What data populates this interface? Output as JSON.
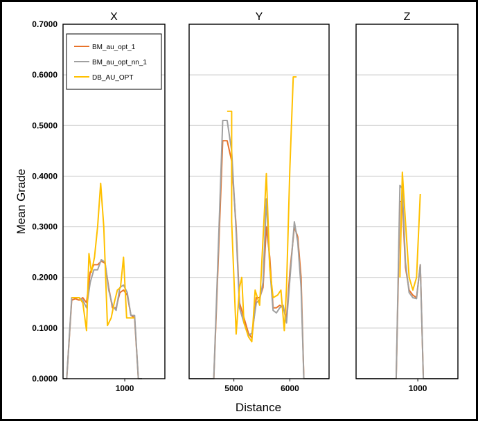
{
  "chart_data": {
    "type": "line",
    "xlabel": "Distance",
    "ylabel": "Mean Grade",
    "ylim": [
      0,
      0.7
    ],
    "yticks": [
      "0.0000",
      "0.1000",
      "0.2000",
      "0.3000",
      "0.4000",
      "0.5000",
      "0.6000",
      "0.7000"
    ],
    "series_meta": [
      {
        "name": "BM_au_opt_1",
        "color": "#e8732a"
      },
      {
        "name": "BM_au_opt_nn_1",
        "color": "#a0a0a0"
      },
      {
        "name": "DB_AU_OPT",
        "color": "#ffc000"
      }
    ],
    "legend_position": "top-left of first panel",
    "panels": [
      {
        "title": "X",
        "xlim": [
          0,
          1650
        ],
        "xticks": [
          1000
        ],
        "xtick_labels": [
          "1000"
        ],
        "series": [
          {
            "name": "BM_au_opt_1",
            "x": [
              0,
              60,
              140,
              200,
              260,
              320,
              380,
              440,
              500,
              560,
              620,
              680,
              740,
              800,
              860,
              920,
              980,
              1040,
              1100,
              1160,
              1220,
              1280
            ],
            "y": [
              0,
              0,
              0.155,
              0.158,
              0.155,
              0.16,
              0.15,
              0.21,
              0.225,
              0.225,
              0.232,
              0.228,
              0.18,
              0.14,
              0.14,
              0.17,
              0.175,
              0.165,
              0.125,
              0.12,
              0,
              0
            ]
          },
          {
            "name": "BM_au_opt_nn_1",
            "x": [
              0,
              60,
              140,
              200,
              260,
              320,
              380,
              440,
              500,
              560,
              620,
              680,
              740,
              800,
              860,
              920,
              980,
              1040,
              1100,
              1160,
              1220,
              1280
            ],
            "y": [
              0,
              0,
              0.16,
              0.16,
              0.16,
              0.155,
              0.14,
              0.19,
              0.215,
              0.215,
              0.235,
              0.23,
              0.175,
              0.145,
              0.135,
              0.18,
              0.185,
              0.17,
              0.125,
              0.125,
              0,
              0
            ]
          },
          {
            "name": "DB_AU_OPT",
            "x": [
              140,
              200,
              260,
              320,
              380,
              420,
              460,
              510,
              560,
              610,
              660,
              720,
              780,
              830,
              880,
              930,
              980,
              1030,
              1080,
              1160
            ],
            "y": [
              0.16,
              0.16,
              0.16,
              0.15,
              0.095,
              0.247,
              0.21,
              0.24,
              0.3,
              0.386,
              0.3,
              0.105,
              0.12,
              0.15,
              0.175,
              0.18,
              0.24,
              0.12,
              0.12,
              0.12
            ]
          }
        ]
      },
      {
        "title": "Y",
        "xlim": [
          4200,
          6700
        ],
        "xticks": [
          5000,
          6000
        ],
        "xtick_labels": [
          "5000",
          "6000"
        ],
        "series": [
          {
            "name": "BM_au_opt_1",
            "x": [
              4200,
              4640,
              4800,
              4880,
              4960,
              5040,
              5100,
              5180,
              5260,
              5320,
              5400,
              5460,
              5520,
              5580,
              5640,
              5700,
              5760,
              5820,
              5880,
              5940,
              6000,
              6080,
              6140,
              6200,
              6250,
              6700
            ],
            "y": [
              0,
              0,
              0.47,
              0.47,
              0.43,
              0.3,
              0.15,
              0.12,
              0.09,
              0.08,
              0.16,
              0.16,
              0.18,
              0.3,
              0.24,
              0.14,
              0.14,
              0.145,
              0.14,
              0.12,
              0.21,
              0.3,
              0.28,
              0.2,
              0,
              0
            ]
          },
          {
            "name": "BM_au_opt_nn_1",
            "x": [
              4200,
              4640,
              4800,
              4880,
              4960,
              5040,
              5100,
              5180,
              5260,
              5320,
              5400,
              5460,
              5520,
              5580,
              5640,
              5700,
              5760,
              5820,
              5880,
              5940,
              6000,
              6080,
              6140,
              6200,
              6250,
              6700
            ],
            "y": [
              0,
              0,
              0.51,
              0.51,
              0.45,
              0.29,
              0.14,
              0.11,
              0.085,
              0.09,
              0.15,
              0.155,
              0.19,
              0.355,
              0.22,
              0.135,
              0.13,
              0.14,
              0.145,
              0.11,
              0.195,
              0.31,
              0.27,
              0.18,
              0,
              0
            ]
          },
          {
            "name": "DB_AU_OPT",
            "x": [
              4880,
              4960,
              4960,
              5040,
              5100,
              5140,
              5180,
              5260,
              5320,
              5380,
              5420,
              5460,
              5540,
              5580,
              5640,
              5700,
              5780,
              5840,
              5900,
              5940,
              6000,
              6060,
              6060,
              6120
            ],
            "y": [
              0.528,
              0.528,
              0.31,
              0.088,
              0.18,
              0.2,
              0.11,
              0.083,
              0.073,
              0.175,
              0.16,
              0.145,
              0.32,
              0.405,
              0.22,
              0.16,
              0.165,
              0.175,
              0.095,
              0.18,
              0.415,
              0.596,
              0.596,
              0.596
            ]
          }
        ]
      },
      {
        "title": "Z",
        "xlim": [
          0,
          1650
        ],
        "xticks": [
          1000
        ],
        "xtick_labels": [
          "1000"
        ],
        "series": [
          {
            "name": "BM_au_opt_1",
            "x": [
              0,
              650,
              710,
              750,
              800,
              860,
              920,
              980,
              1040,
              1090,
              1650
            ],
            "y": [
              0,
              0,
              0.35,
              0.35,
              0.22,
              0.175,
              0.165,
              0.16,
              0.225,
              0,
              0
            ]
          },
          {
            "name": "BM_au_opt_nn_1",
            "x": [
              0,
              650,
              710,
              750,
              800,
              860,
              920,
              980,
              1040,
              1090,
              1650
            ],
            "y": [
              0,
              0,
              0.382,
              0.375,
              0.23,
              0.17,
              0.16,
              0.158,
              0.225,
              0,
              0
            ]
          },
          {
            "name": "DB_AU_OPT",
            "x": [
              710,
              750,
              800,
              860,
              920,
              980,
              1040
            ],
            "y": [
              0.2,
              0.408,
              0.31,
              0.2,
              0.175,
              0.2,
              0.365
            ]
          }
        ]
      }
    ]
  }
}
